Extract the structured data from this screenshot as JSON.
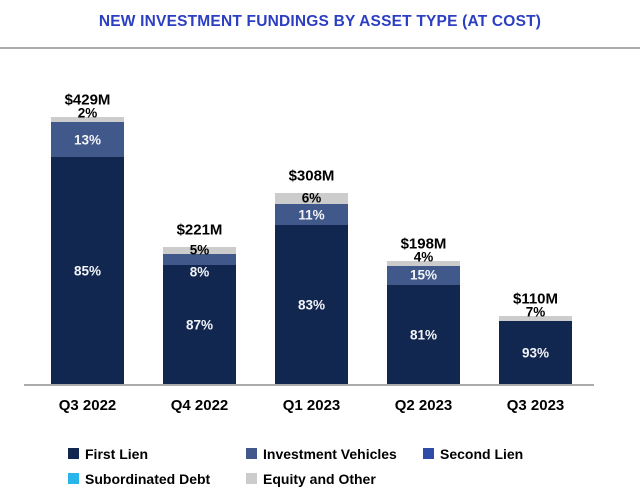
{
  "colors": {
    "title": "#2C3EC2",
    "divider": "#ABABAB",
    "axis_line": "#ABABAB",
    "background": "#FFFFFF",
    "label_on_dark": "#F2F4F8",
    "label_on_light": "#000000"
  },
  "chart_data": {
    "type": "bar",
    "stacked": true,
    "title": "NEW INVESTMENT FUNDINGS BY ASSET TYPE (AT COST)",
    "categories": [
      "Q3 2022",
      "Q4 2022",
      "Q1 2023",
      "Q2 2023",
      "Q3 2023"
    ],
    "totals_label": [
      "$429M",
      "$221M",
      "$308M",
      "$198M",
      "$110M"
    ],
    "totals_musd": [
      429,
      221,
      308,
      198,
      110
    ],
    "value_unit": "percent of quarterly funding",
    "grid": false,
    "legend_position": "bottom",
    "series": [
      {
        "name": "First Lien",
        "color": "#122750",
        "values_pct": [
          85,
          87,
          83,
          81,
          93
        ],
        "label_style": "light"
      },
      {
        "name": "Investment Vehicles",
        "color": "#41588A",
        "values_pct": [
          13,
          8,
          11,
          15,
          0
        ],
        "label_style": "light"
      },
      {
        "name": "Second Lien",
        "color": "#2F4DA8",
        "values_pct": [
          0,
          0,
          0,
          0,
          0
        ],
        "label_style": "light"
      },
      {
        "name": "Subordinated Debt",
        "color": "#29B5EA",
        "values_pct": [
          0,
          0,
          0,
          0,
          0
        ],
        "label_style": "light"
      },
      {
        "name": "Equity and Other",
        "color": "#CCCCCC",
        "values_pct": [
          2,
          5,
          6,
          4,
          7
        ],
        "label_style": "dark"
      }
    ]
  }
}
